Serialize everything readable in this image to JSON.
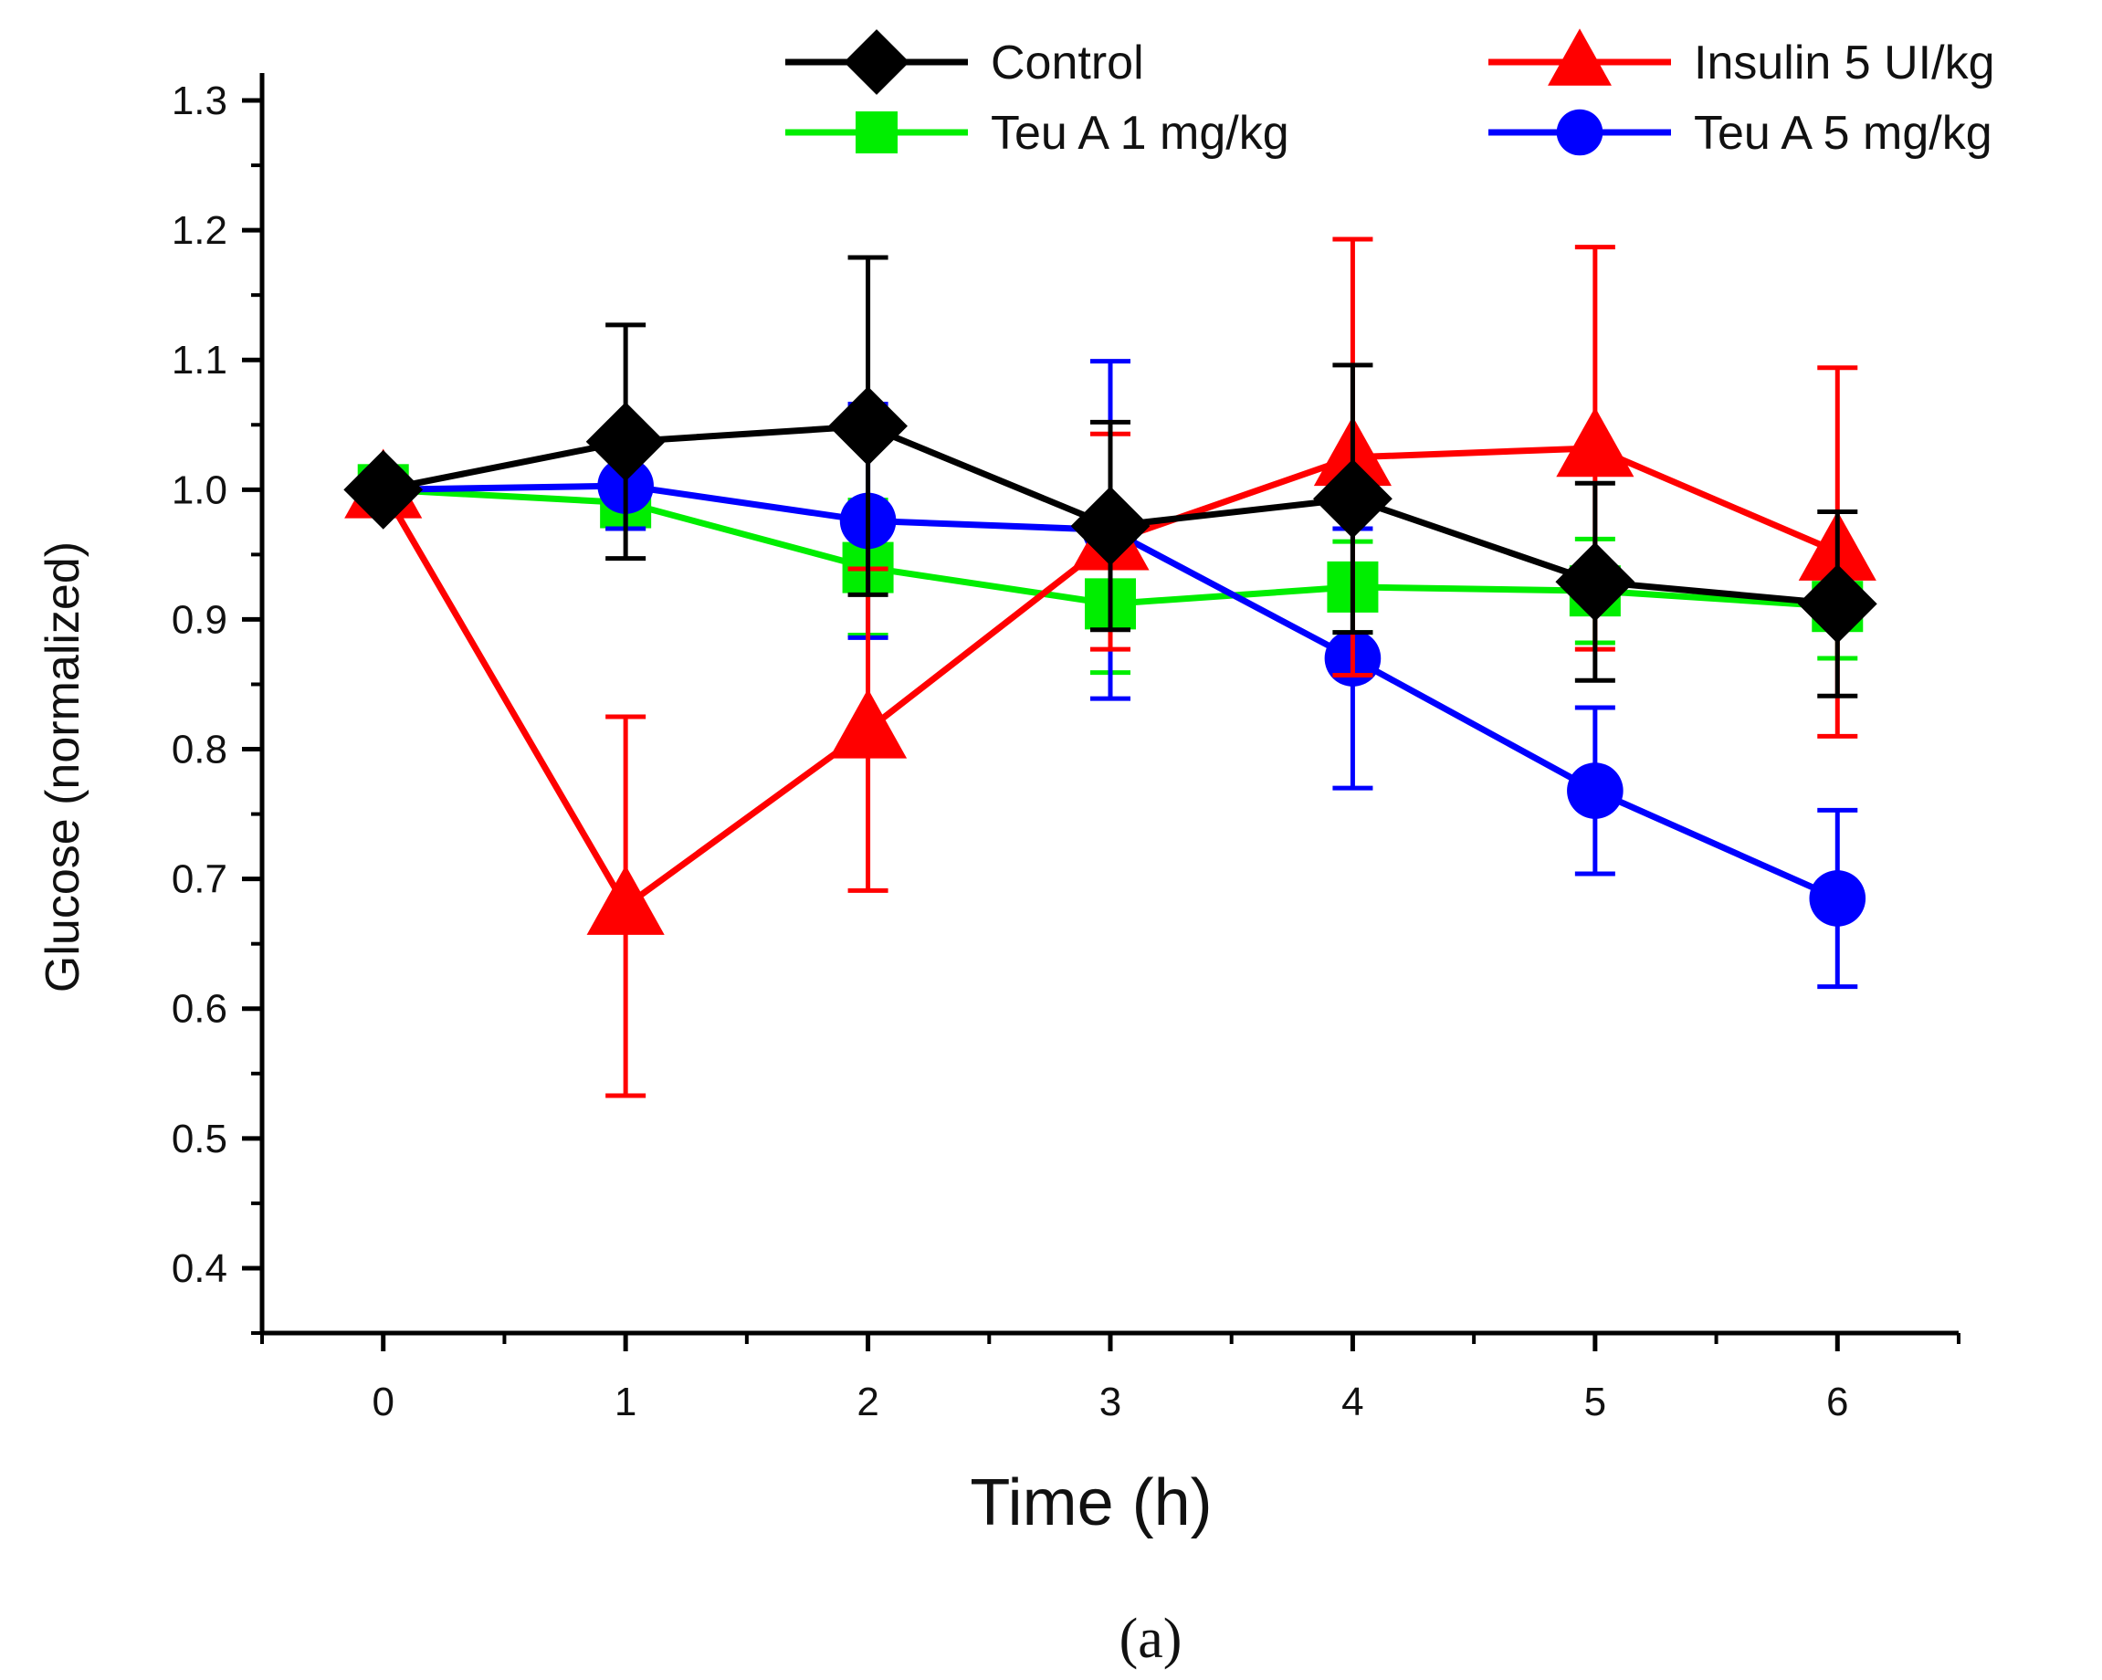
{
  "chart_data": {
    "type": "line",
    "title": "",
    "xlabel": "Time (h)",
    "ylabel": "Glucose (normalized)",
    "caption": "(a)",
    "x": [
      0,
      1,
      2,
      3,
      4,
      5,
      6
    ],
    "xlim": [
      -0.5,
      6.5
    ],
    "ylim": [
      0.35,
      1.3
    ],
    "x_ticks": [
      "0",
      "1",
      "2",
      "3",
      "4",
      "5",
      "6"
    ],
    "y_ticks": [
      "0.4",
      "0.5",
      "0.6",
      "0.7",
      "0.8",
      "0.9",
      "1.0",
      "1.1",
      "1.2",
      "1.3"
    ],
    "legend_position": "top",
    "series": [
      {
        "name": "Control",
        "color": "#000000",
        "marker": "diamond",
        "values": [
          1.0,
          1.037,
          1.049,
          0.972,
          0.993,
          0.929,
          0.912
        ],
        "errors": [
          0.0,
          0.09,
          0.13,
          0.08,
          0.103,
          0.076,
          0.071
        ]
      },
      {
        "name": "Insulin 5 UI/kg",
        "color": "#ff0000",
        "marker": "triangle",
        "values": [
          1.0,
          0.679,
          0.815,
          0.96,
          1.025,
          1.032,
          0.952
        ],
        "errors": [
          0.0,
          0.146,
          0.124,
          0.083,
          0.168,
          0.155,
          0.142
        ]
      },
      {
        "name": "Teu A 1 mg/kg",
        "color": "#00ee00",
        "marker": "square",
        "values": [
          1.0,
          0.99,
          0.94,
          0.912,
          0.925,
          0.922,
          0.91
        ],
        "errors": [
          0.0,
          0.02,
          0.052,
          0.053,
          0.035,
          0.04,
          0.04
        ]
      },
      {
        "name": "Teu A 5 mg/kg",
        "color": "#0000ff",
        "marker": "circle",
        "values": [
          1.0,
          1.003,
          0.976,
          0.969,
          0.87,
          0.768,
          0.685
        ],
        "errors": [
          0.0,
          0.033,
          0.09,
          0.13,
          0.1,
          0.064,
          0.068
        ]
      }
    ]
  }
}
